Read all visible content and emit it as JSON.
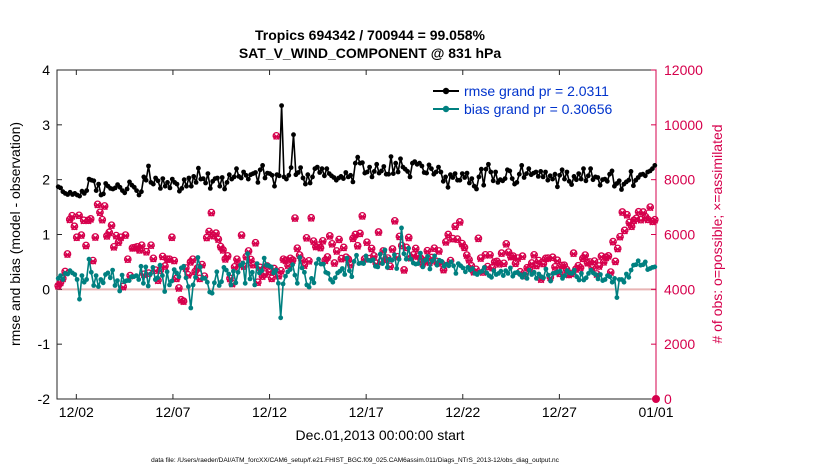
{
  "chart_data": {
    "type": "line",
    "title_line1": "Tropics 694342 / 700944 = 99.058%",
    "title_line2": "SAT_V_WIND_COMPONENT @ 831 hPa",
    "xlabel": "Dec.01,2013 00:00:00 start",
    "ylabel_left": "rmse and bias (model - observation)",
    "ylabel_right": "# of obs: o=possible; ×=assimilated",
    "footer": "data file: /Users/raeder/DAI/ATM_forcXX/CAM6_setup/f.e21.FHIST_BGC.f09_025.CAM6assim.011/Diags_NTrS_2013-12/obs_diag_output.nc",
    "x_range": [
      0,
      31
    ],
    "x_ticks": [
      {
        "label": "12/02",
        "value": 1
      },
      {
        "label": "12/07",
        "value": 6
      },
      {
        "label": "12/12",
        "value": 11
      },
      {
        "label": "12/17",
        "value": 16
      },
      {
        "label": "12/22",
        "value": 21
      },
      {
        "label": "12/27",
        "value": 26
      },
      {
        "label": "01/01",
        "value": 31
      }
    ],
    "ylim_left": [
      -2,
      4
    ],
    "yticks_left": [
      "-2",
      "-1",
      "0",
      "1",
      "2",
      "3",
      "4"
    ],
    "ylim_right": [
      0,
      12000
    ],
    "yticks_right": [
      "0",
      "2000",
      "4000",
      "6000",
      "8000",
      "10000",
      "12000"
    ],
    "colors": {
      "rmse": "#000000",
      "bias": "#008080",
      "obs": "#d6004c",
      "zero_line": "#e8b4b4"
    },
    "series": [
      {
        "name": "rmse grand pr = 2.0311",
        "axis": "left",
        "y": [
          1.87,
          1.85,
          1.78,
          1.75,
          1.73,
          1.77,
          1.73,
          1.75,
          1.72,
          1.7,
          1.79,
          1.75,
          1.8,
          2.01,
          1.99,
          1.98,
          1.8,
          1.92,
          1.72,
          1.74,
          1.93,
          1.88,
          1.84,
          1.83,
          1.85,
          1.91,
          1.86,
          1.8,
          1.76,
          1.83,
          1.96,
          1.9,
          1.86,
          1.8,
          1.72,
          1.78,
          2.05,
          1.99,
          2.25,
          1.95,
          1.92,
          2.03,
          1.98,
          1.84,
          2.02,
          1.88,
          1.95,
          1.85,
          2.01,
          1.95,
          1.92,
          1.79,
          1.84,
          2.0,
          1.88,
          2.03,
          1.88,
          2.06,
          1.95,
          2.21,
          2.01,
          2.02,
          1.94,
          2.11,
          1.84,
          1.97,
          2.02,
          2.03,
          1.88,
          2.04,
          1.83,
          1.95,
          2.09,
          2.01,
          2.05,
          2.2,
          2.06,
          2.03,
          2.14,
          2.08,
          2.01,
          2.09,
          2.11,
          2.13,
          1.95,
          2.18,
          2.26,
          2.03,
          2.12,
          2.11,
          2.08,
          1.88,
          2.09,
          2.07,
          3.35,
          2.05,
          2.01,
          2.08,
          2.22,
          2.82,
          2.09,
          2.13,
          2.22,
          2.03,
          1.92,
          2.09,
          1.94,
          2.05,
          2.2,
          2.23,
          2.13,
          2.2,
          2.07,
          2.2,
          2.11,
          2.07,
          2.04,
          1.99,
          2.03,
          2.06,
          2.02,
          2.13,
          2.05,
          2.08,
          1.96,
          2.3,
          2.41,
          2.3,
          2.31,
          2.12,
          2.14,
          2.23,
          2.05,
          2.15,
          2.28,
          2.12,
          2.16,
          2.24,
          2.1,
          2.1,
          2.42,
          2.11,
          2.3,
          2.14,
          2.38,
          2.23,
          2.19,
          2.15,
          2.05,
          2.3,
          2.33,
          2.28,
          2.3,
          2.25,
          2.13,
          2.12,
          2.27,
          2.2,
          2.1,
          2.14,
          2.23,
          2.14,
          1.97,
          2.05,
          1.86,
          2.09,
          2.04,
          2.11,
          1.99,
          1.99,
          2.11,
          2.04,
          2.12,
          1.94,
          2.02,
          1.88,
          1.83,
          2.05,
          2.19,
          1.9,
          2.19,
          2.28,
          2.14,
          1.98,
          2.14,
          1.95,
          2.0,
          1.98,
          2.02,
          2.18,
          2.16,
          2.02,
          1.92,
          1.95,
          2.1,
          2.26,
          2.04,
          2.11,
          2.2,
          2.09,
          2.12,
          2.14,
          2.06,
          2.15,
          2.05,
          2.14,
          1.99,
          2.07,
          2.01,
          2.1,
          1.87,
          2.08,
          2.18,
          2.01,
          2.14,
          1.97,
          1.91,
          2.06,
          2.0,
          2.11,
          2.01,
          2.2,
          1.98,
          2.07,
          2.2,
          2.0,
          2.05,
          2.04,
          1.9,
          2.0,
          2.01,
          1.97,
          2.1,
          2.16,
          1.88,
          1.93,
          1.98,
          1.82,
          1.92,
          1.96,
          1.99,
          2.15,
          1.89,
          1.99,
          2.04,
          2.09,
          2.1,
          2.07,
          2.14,
          2.16,
          2.2,
          2.26
        ]
      },
      {
        "name": "bias grand pr = 0.30656",
        "axis": "left",
        "y": [
          0.2,
          0.25,
          0.18,
          0.29,
          0.28,
          0.34,
          0.3,
          0.27,
          0.18,
          -0.18,
          0.25,
          0.13,
          0.18,
          0.55,
          0.31,
          0.07,
          0.25,
          0.05,
          0.18,
          0.12,
          0.27,
          0.3,
          0.21,
          0.35,
          0.07,
          0.16,
          -0.03,
          0.26,
          0.14,
          0.16,
          0.16,
          0.23,
          0.23,
          0.25,
          0.18,
          0.42,
          0.11,
          0.41,
          0.06,
          0.28,
          0.4,
          0.18,
          0.21,
          0.44,
          0.25,
          -0.04,
          0.32,
          0.08,
          0.15,
          0.36,
          0.3,
          0.23,
          0.39,
          0.42,
          0.21,
          0.05,
          -0.34,
          0.08,
          0.22,
          0.58,
          0.41,
          0.2,
          0.2,
          0.13,
          -0.05,
          -0.07,
          0.12,
          0.32,
          0.07,
          0.14,
          0.4,
          0.35,
          0.28,
          0.08,
          0.33,
          0.12,
          0.31,
          0.44,
          0.48,
          0.11,
          0.65,
          0.19,
          0.31,
          0.08,
          0.47,
          0.3,
          0.34,
          0.57,
          0.44,
          0.43,
          0.41,
          0.3,
          0.35,
          0.11,
          -0.52,
          0.1,
          0.24,
          0.32,
          0.36,
          0.45,
          0.26,
          0.11,
          0.58,
          0.39,
          0.31,
          0.08,
          0.04,
          0.2,
          0.12,
          0.47,
          0.55,
          0.46,
          0.46,
          0.31,
          0.29,
          0.18,
          0.13,
          0.21,
          0.3,
          0.33,
          0.38,
          0.27,
          0.57,
          0.34,
          0.23,
          0.51,
          0.62,
          0.47,
          0.48,
          0.47,
          0.61,
          0.53,
          0.52,
          0.54,
          0.42,
          0.41,
          0.64,
          0.47,
          0.72,
          0.4,
          0.55,
          0.53,
          0.63,
          0.38,
          0.55,
          1.12,
          0.65,
          0.55,
          0.75,
          0.55,
          0.48,
          0.46,
          0.47,
          0.66,
          0.41,
          0.53,
          0.6,
          0.37,
          0.52,
          0.61,
          0.44,
          0.53,
          0.51,
          0.42,
          0.46,
          0.43,
          0.5,
          0.43,
          0.29,
          0.47,
          0.43,
          0.39,
          0.32,
          0.4,
          0.35,
          0.38,
          0.29,
          0.27,
          0.31,
          0.33,
          0.4,
          0.3,
          0.25,
          0.22,
          0.34,
          0.27,
          0.29,
          0.33,
          0.25,
          0.34,
          0.29,
          0.39,
          0.24,
          0.3,
          0.31,
          0.27,
          0.22,
          0.28,
          0.2,
          0.35,
          0.27,
          0.31,
          0.2,
          0.28,
          0.23,
          0.21,
          0.37,
          0.26,
          0.15,
          0.29,
          0.3,
          0.32,
          0.33,
          0.2,
          0.25,
          0.34,
          0.3,
          0.29,
          0.35,
          0.23,
          0.17,
          0.29,
          0.17,
          0.21,
          0.29,
          0.35,
          0.3,
          0.27,
          0.19,
          0.27,
          0.16,
          0.18,
          0.25,
          0.23,
          0.13,
          0.2,
          -0.15,
          0.18,
          0.18,
          0.13,
          0.28,
          0.22,
          0.35,
          0.44,
          0.45,
          0.52,
          0.44,
          0.45,
          0.5,
          0.36,
          0.38,
          0.4,
          0.41
        ]
      },
      {
        "name": "# of obs possible",
        "axis": "right",
        "marker": "o",
        "y": [
          4131,
          4250,
          4400,
          4650,
          5290,
          6550,
          6685,
          6300,
          5900,
          6700,
          5980,
          6520,
          5600,
          6520,
          6570,
          5050,
          5910,
          7100,
          6810,
          6540,
          7040,
          5950,
          6080,
          6340,
          5550,
          5960,
          5720,
          5900,
          4100,
          5980,
          5100,
          4500,
          5510,
          5520,
          5550,
          5440,
          5610,
          4550,
          5370,
          4590,
          5610,
          5130,
          4700,
          4330,
          4700,
          5200,
          4850,
          5100,
          5100,
          5900,
          5050,
          4400,
          4050,
          3620,
          3570,
          4780,
          4530,
          5000,
          5100,
          4650,
          4780,
          4400,
          4900,
          4480,
          5890,
          6110,
          6800,
          5960,
          6050,
          5830,
          5560,
          5440,
          5110,
          5220,
          4400,
          4210,
          4820,
          5100,
          4930,
          5980,
          4840,
          5190,
          5400,
          5090,
          4900,
          5700,
          4260,
          4800,
          4480,
          4560,
          4850,
          4650,
          4400,
          4760,
          9600,
          4500,
          4680,
          5100,
          5060,
          4880,
          5130,
          5070,
          6600,
          5500,
          5250,
          5070,
          4880,
          5880,
          5040,
          6610,
          5760,
          5560,
          5610,
          5520,
          5770,
          5060,
          5180,
          5950,
          5660,
          4960,
          5400,
          5820,
          5120,
          5530,
          5170,
          5100,
          4900,
          5860,
          6000,
          5590,
          6040,
          6680,
          5110,
          5720,
          5120,
          5490,
          5220,
          4950,
          6090,
          5010,
          5400,
          5090,
          5140,
          4840,
          5470,
          6500,
          5190,
          5930,
          5600,
          4710,
          5530,
          5890,
          5150,
          5260,
          5490,
          5210,
          5150,
          4940,
          5050,
          5410,
          4990,
          5160,
          5500,
          5020,
          5400,
          4960,
          4720,
          5730,
          6000,
          5050,
          5850,
          6300,
          5830,
          6460,
          5670,
          5530,
          5250,
          5080,
          4860,
          4640,
          4730,
          5860,
          5140,
          4630,
          5260,
          4830,
          5260,
          4790,
          5000,
          5020,
          4930,
          5320,
          4950,
          5660,
          5360,
          5190,
          5210,
          4950,
          5140,
          4640,
          5210,
          4500,
          4790,
          4760,
          4960,
          5260,
          4870,
          5050,
          4370,
          4940,
          5130,
          5140,
          4440,
          5170,
          4820,
          5060,
          4580,
          4870,
          4880,
          4720,
          4540,
          4580,
          5320,
          4740,
          4860,
          4790,
          5130,
          5250,
          4970,
          5000,
          4800,
          5030,
          4560,
          4850,
          5210,
          5000,
          5170,
          5220,
          4630,
          5740,
          5020,
          5490,
          5920,
          6820,
          6150,
          6720,
          6440,
          6300,
          6520,
          6590,
          6830,
          6540,
          6820,
          6650,
          6550,
          7000,
          6480,
          6540
        ]
      },
      {
        "name": "# of obs assimilated",
        "axis": "right",
        "marker": "x",
        "y": [
          4100,
          4220,
          4370,
          4620,
          5260,
          6520,
          6650,
          6270,
          5870,
          6670,
          5950,
          6490,
          5570,
          6490,
          6540,
          5020,
          5880,
          7070,
          6780,
          6510,
          7010,
          5920,
          6050,
          6310,
          5520,
          5930,
          5690,
          5870,
          4070,
          5950,
          5070,
          4470,
          5480,
          5490,
          5520,
          5410,
          5580,
          4520,
          5340,
          4560,
          5580,
          5100,
          4670,
          4300,
          4670,
          5170,
          4820,
          5070,
          5070,
          5870,
          5020,
          4370,
          4020,
          3590,
          3540,
          4750,
          4500,
          4970,
          5070,
          4620,
          4750,
          4370,
          4870,
          4450,
          5860,
          6080,
          6770,
          5930,
          6020,
          5800,
          5530,
          5410,
          5080,
          5190,
          4370,
          4180,
          4790,
          5070,
          4900,
          5950,
          4810,
          5160,
          5370,
          5060,
          4870,
          5670,
          4230,
          4770,
          4450,
          4530,
          4820,
          4620,
          4370,
          4730,
          9570,
          4470,
          4650,
          5070,
          5030,
          4850,
          5100,
          5040,
          6570,
          5470,
          5220,
          5040,
          4850,
          5850,
          5010,
          6580,
          5730,
          5530,
          5580,
          5490,
          5740,
          5030,
          5150,
          5920,
          5630,
          4930,
          5370,
          5790,
          5090,
          5500,
          5140,
          5070,
          4870,
          5830,
          5970,
          5560,
          6010,
          6650,
          5080,
          5690,
          5090,
          5460,
          5190,
          4920,
          6060,
          4980,
          5370,
          5060,
          5110,
          4810,
          5440,
          6470,
          5160,
          5900,
          5570,
          4680,
          5500,
          5860,
          5120,
          5230,
          5460,
          5180,
          5120,
          4910,
          5020,
          5380,
          4960,
          5130,
          5470,
          4990,
          5370,
          4930,
          4690,
          5700,
          5970,
          5020,
          5820,
          6270,
          5800,
          6430,
          5640,
          5500,
          5220,
          5050,
          4830,
          4610,
          4700,
          5830,
          5110,
          4600,
          5230,
          4800,
          5230,
          4760,
          4970,
          4990,
          4900,
          5290,
          4920,
          5630,
          5330,
          5160,
          5180,
          4920,
          5110,
          4610,
          5180,
          4470,
          4760,
          4730,
          4930,
          5230,
          4840,
          5020,
          4340,
          4910,
          5100,
          5110,
          4410,
          5140,
          4790,
          5030,
          4550,
          4840,
          4850,
          4690,
          4510,
          4550,
          5290,
          4710,
          4830,
          4760,
          5100,
          5220,
          4940,
          4970,
          4770,
          5000,
          4530,
          4820,
          5180,
          4970,
          5140,
          5190,
          4600,
          5710,
          4990,
          5460,
          5890,
          6790,
          6120,
          6690,
          6410,
          6270,
          6490,
          6560,
          6800,
          6510,
          6790,
          6620,
          6520,
          6970,
          6450,
          6510
        ]
      }
    ],
    "final_point": {
      "x": 31,
      "y_right": 0
    }
  }
}
